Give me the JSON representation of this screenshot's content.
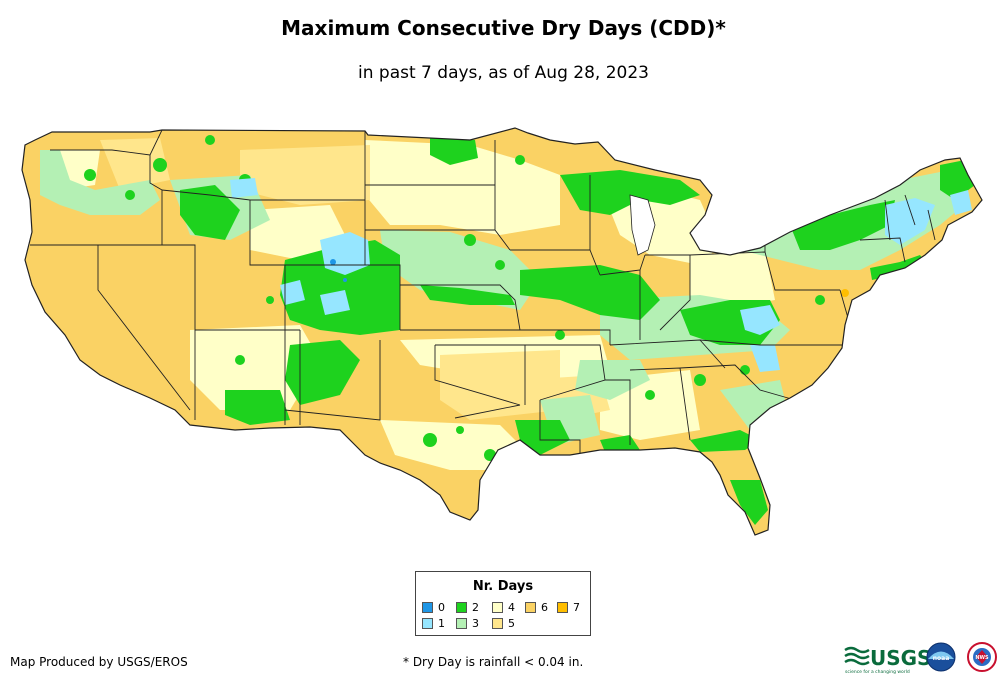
{
  "title": "Maximum Consecutive Dry Days (CDD)*",
  "subtitle": "in past 7 days, as of Aug 28, 2023",
  "legend": {
    "title": "Nr. Days",
    "items": [
      {
        "label": "0",
        "color": "#1e96e6"
      },
      {
        "label": "1",
        "color": "#96e6ff"
      },
      {
        "label": "2",
        "color": "#1ed21e"
      },
      {
        "label": "3",
        "color": "#b4f0b4"
      },
      {
        "label": "4",
        "color": "#ffffc8"
      },
      {
        "label": "5",
        "color": "#ffe68c"
      },
      {
        "label": "6",
        "color": "#fad264"
      },
      {
        "label": "7",
        "color": "#ffbe00"
      }
    ]
  },
  "credit": "Map Produced by USGS/EROS",
  "footnote": "* Dry Day is rainfall < 0.04 in.",
  "logos": {
    "usgs": "USGS",
    "usgs_tagline": "science for a changing world",
    "noaa": "noaa",
    "nws": "NWS"
  }
}
